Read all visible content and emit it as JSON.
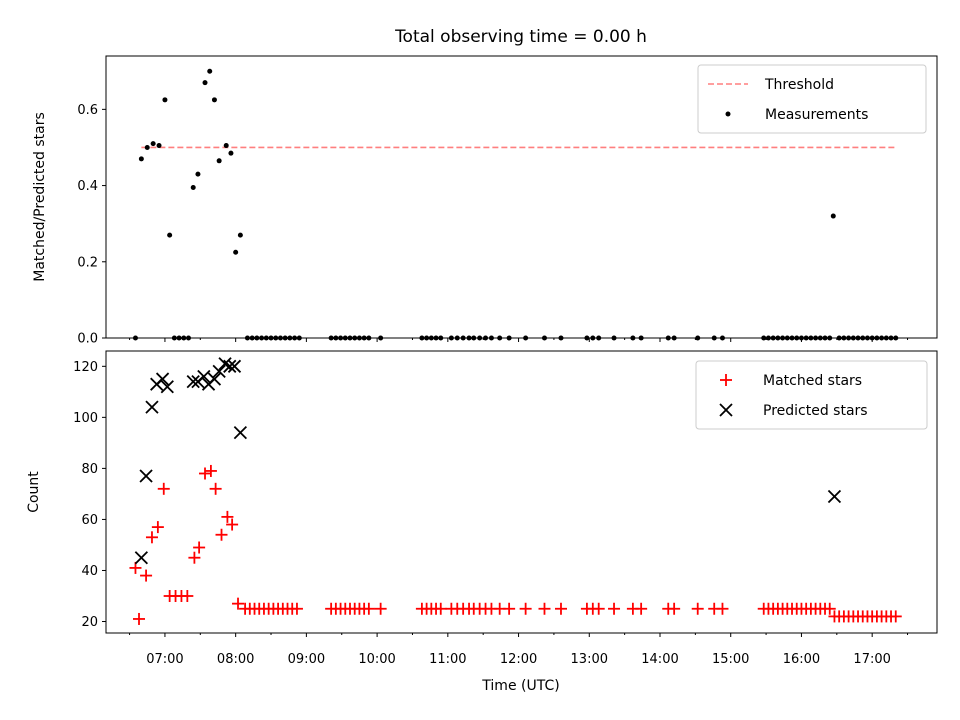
{
  "chart_data": [
    {
      "type": "scatter",
      "title": "Total observing time = 0.00 h",
      "xlabel": "",
      "ylabel": "Matched/Predicted stars",
      "xlim": [
        "06:10",
        "17:55"
      ],
      "ylim": [
        0,
        0.74
      ],
      "y_ticks": [
        0.0,
        0.2,
        0.4,
        0.6
      ],
      "y_tick_labels": [
        "0.0",
        "0.2",
        "0.4",
        "0.6"
      ],
      "threshold": {
        "name": "Threshold",
        "value": 0.5,
        "x_start": "06:40",
        "x_end": "17:20",
        "color": "#ff7f7f",
        "style": "dashed"
      },
      "series": [
        {
          "name": "Measurements",
          "color": "#000000",
          "marker": "dot",
          "points": [
            [
              "06:35",
              0.0
            ],
            [
              "06:40",
              0.47
            ],
            [
              "06:45",
              0.5
            ],
            [
              "06:50",
              0.51
            ],
            [
              "06:55",
              0.505
            ],
            [
              "07:00",
              0.625
            ],
            [
              "07:04",
              0.27
            ],
            [
              "07:08",
              0.0
            ],
            [
              "07:12",
              0.0
            ],
            [
              "07:16",
              0.0
            ],
            [
              "07:20",
              0.0
            ],
            [
              "07:24",
              0.395
            ],
            [
              "07:28",
              0.43
            ],
            [
              "07:34",
              0.67
            ],
            [
              "07:38",
              0.7
            ],
            [
              "07:42",
              0.625
            ],
            [
              "07:46",
              0.465
            ],
            [
              "07:52",
              0.505
            ],
            [
              "07:56",
              0.485
            ],
            [
              "08:00",
              0.225
            ],
            [
              "08:04",
              0.27
            ],
            [
              "08:10",
              0.0
            ],
            [
              "08:14",
              0.0
            ],
            [
              "08:18",
              0.0
            ],
            [
              "08:22",
              0.0
            ],
            [
              "08:26",
              0.0
            ],
            [
              "08:30",
              0.0
            ],
            [
              "08:34",
              0.0
            ],
            [
              "08:38",
              0.0
            ],
            [
              "08:42",
              0.0
            ],
            [
              "08:46",
              0.0
            ],
            [
              "08:50",
              0.0
            ],
            [
              "08:54",
              0.0
            ],
            [
              "09:21",
              0.0
            ],
            [
              "09:25",
              0.0
            ],
            [
              "09:29",
              0.0
            ],
            [
              "09:33",
              0.0
            ],
            [
              "09:37",
              0.0
            ],
            [
              "09:41",
              0.0
            ],
            [
              "09:45",
              0.0
            ],
            [
              "09:49",
              0.0
            ],
            [
              "09:53",
              0.0
            ],
            [
              "10:03",
              0.0
            ],
            [
              "10:38",
              0.0
            ],
            [
              "10:42",
              0.0
            ],
            [
              "10:46",
              0.0
            ],
            [
              "10:50",
              0.0
            ],
            [
              "10:54",
              0.0
            ],
            [
              "11:03",
              0.0
            ],
            [
              "11:08",
              0.0
            ],
            [
              "11:13",
              0.0
            ],
            [
              "11:18",
              0.0
            ],
            [
              "11:22",
              0.0
            ],
            [
              "11:27",
              0.0
            ],
            [
              "11:32",
              0.0
            ],
            [
              "11:37",
              0.0
            ],
            [
              "11:44",
              0.0
            ],
            [
              "11:52",
              0.0
            ],
            [
              "12:06",
              0.0
            ],
            [
              "12:22",
              0.0
            ],
            [
              "12:36",
              0.0
            ],
            [
              "12:58",
              0.0
            ],
            [
              "13:03",
              0.0
            ],
            [
              "13:08",
              0.0
            ],
            [
              "13:21",
              0.0
            ],
            [
              "13:37",
              0.0
            ],
            [
              "13:44",
              0.0
            ],
            [
              "14:07",
              0.0
            ],
            [
              "14:12",
              0.0
            ],
            [
              "14:32",
              0.0
            ],
            [
              "14:46",
              0.0
            ],
            [
              "14:53",
              0.0
            ],
            [
              "15:28",
              0.0
            ],
            [
              "15:32",
              0.0
            ],
            [
              "15:36",
              0.0
            ],
            [
              "15:40",
              0.0
            ],
            [
              "15:44",
              0.0
            ],
            [
              "15:48",
              0.0
            ],
            [
              "15:52",
              0.0
            ],
            [
              "15:56",
              0.0
            ],
            [
              "16:00",
              0.0
            ],
            [
              "16:04",
              0.0
            ],
            [
              "16:08",
              0.0
            ],
            [
              "16:12",
              0.0
            ],
            [
              "16:16",
              0.0
            ],
            [
              "16:20",
              0.0
            ],
            [
              "16:24",
              0.0
            ],
            [
              "16:27",
              0.32
            ],
            [
              "16:32",
              0.0
            ],
            [
              "16:36",
              0.0
            ],
            [
              "16:40",
              0.0
            ],
            [
              "16:44",
              0.0
            ],
            [
              "16:48",
              0.0
            ],
            [
              "16:52",
              0.0
            ],
            [
              "16:56",
              0.0
            ],
            [
              "17:00",
              0.0
            ],
            [
              "17:04",
              0.0
            ],
            [
              "17:08",
              0.0
            ],
            [
              "17:12",
              0.0
            ],
            [
              "17:16",
              0.0
            ],
            [
              "17:20",
              0.0
            ]
          ]
        }
      ],
      "legend": {
        "entries": [
          "Threshold",
          "Measurements"
        ],
        "position": "top-right"
      }
    },
    {
      "type": "scatter",
      "title": "",
      "xlabel": "Time (UTC)",
      "ylabel": "Count",
      "xlim": [
        "06:10",
        "17:55"
      ],
      "ylim": [
        15.5,
        126
      ],
      "x_ticks": [
        "07:00",
        "08:00",
        "09:00",
        "10:00",
        "11:00",
        "12:00",
        "13:00",
        "14:00",
        "15:00",
        "16:00",
        "17:00"
      ],
      "x_minor_ticks": [
        "06:30",
        "07:30",
        "08:30",
        "09:30",
        "10:30",
        "11:30",
        "12:30",
        "13:30",
        "14:30",
        "15:30",
        "16:30",
        "17:30"
      ],
      "y_ticks": [
        20,
        40,
        60,
        80,
        100,
        120
      ],
      "series": [
        {
          "name": "Matched stars",
          "color": "#ff0000",
          "marker": "plus",
          "points": [
            [
              "06:35",
              41
            ],
            [
              "06:38",
              21
            ],
            [
              "06:44",
              38
            ],
            [
              "06:49",
              53
            ],
            [
              "06:54",
              57
            ],
            [
              "06:59",
              72
            ],
            [
              "07:04",
              30
            ],
            [
              "07:09",
              30
            ],
            [
              "07:14",
              30
            ],
            [
              "07:19",
              30
            ],
            [
              "07:25",
              45
            ],
            [
              "07:29",
              49
            ],
            [
              "07:34",
              78
            ],
            [
              "07:39",
              79
            ],
            [
              "07:43",
              72
            ],
            [
              "07:48",
              54
            ],
            [
              "07:53",
              61
            ],
            [
              "07:57",
              58
            ],
            [
              "08:02",
              27
            ],
            [
              "08:08",
              25
            ],
            [
              "08:12",
              25
            ],
            [
              "08:16",
              25
            ],
            [
              "08:20",
              25
            ],
            [
              "08:24",
              25
            ],
            [
              "08:28",
              25
            ],
            [
              "08:32",
              25
            ],
            [
              "08:36",
              25
            ],
            [
              "08:40",
              25
            ],
            [
              "08:44",
              25
            ],
            [
              "08:48",
              25
            ],
            [
              "08:52",
              25
            ],
            [
              "09:21",
              25
            ],
            [
              "09:25",
              25
            ],
            [
              "09:29",
              25
            ],
            [
              "09:33",
              25
            ],
            [
              "09:37",
              25
            ],
            [
              "09:41",
              25
            ],
            [
              "09:45",
              25
            ],
            [
              "09:49",
              25
            ],
            [
              "09:53",
              25
            ],
            [
              "10:03",
              25
            ],
            [
              "10:38",
              25
            ],
            [
              "10:42",
              25
            ],
            [
              "10:46",
              25
            ],
            [
              "10:50",
              25
            ],
            [
              "10:54",
              25
            ],
            [
              "11:03",
              25
            ],
            [
              "11:08",
              25
            ],
            [
              "11:13",
              25
            ],
            [
              "11:18",
              25
            ],
            [
              "11:22",
              25
            ],
            [
              "11:27",
              25
            ],
            [
              "11:32",
              25
            ],
            [
              "11:37",
              25
            ],
            [
              "11:44",
              25
            ],
            [
              "11:52",
              25
            ],
            [
              "12:06",
              25
            ],
            [
              "12:22",
              25
            ],
            [
              "12:36",
              25
            ],
            [
              "12:58",
              25
            ],
            [
              "13:03",
              25
            ],
            [
              "13:08",
              25
            ],
            [
              "13:21",
              25
            ],
            [
              "13:37",
              25
            ],
            [
              "13:44",
              25
            ],
            [
              "14:07",
              25
            ],
            [
              "14:12",
              25
            ],
            [
              "14:32",
              25
            ],
            [
              "14:46",
              25
            ],
            [
              "14:53",
              25
            ],
            [
              "15:28",
              25
            ],
            [
              "15:32",
              25
            ],
            [
              "15:36",
              25
            ],
            [
              "15:40",
              25
            ],
            [
              "15:44",
              25
            ],
            [
              "15:48",
              25
            ],
            [
              "15:52",
              25
            ],
            [
              "15:56",
              25
            ],
            [
              "16:00",
              25
            ],
            [
              "16:04",
              25
            ],
            [
              "16:08",
              25
            ],
            [
              "16:12",
              25
            ],
            [
              "16:16",
              25
            ],
            [
              "16:20",
              25
            ],
            [
              "16:24",
              25
            ],
            [
              "16:28",
              22
            ],
            [
              "16:32",
              22
            ],
            [
              "16:36",
              22
            ],
            [
              "16:40",
              22
            ],
            [
              "16:44",
              22
            ],
            [
              "16:48",
              22
            ],
            [
              "16:52",
              22
            ],
            [
              "16:56",
              22
            ],
            [
              "17:00",
              22
            ],
            [
              "17:04",
              22
            ],
            [
              "17:08",
              22
            ],
            [
              "17:12",
              22
            ],
            [
              "17:16",
              22
            ],
            [
              "17:20",
              22
            ]
          ]
        },
        {
          "name": "Predicted stars",
          "color": "#000000",
          "marker": "x",
          "points": [
            [
              "06:40",
              45
            ],
            [
              "06:44",
              77
            ],
            [
              "06:49",
              104
            ],
            [
              "06:53",
              113
            ],
            [
              "06:58",
              115
            ],
            [
              "07:02",
              112
            ],
            [
              "07:24",
              114
            ],
            [
              "07:28",
              114
            ],
            [
              "07:33",
              116
            ],
            [
              "07:37",
              113
            ],
            [
              "07:42",
              115
            ],
            [
              "07:46",
              118
            ],
            [
              "07:51",
              121
            ],
            [
              "07:55",
              120
            ],
            [
              "07:59",
              120
            ],
            [
              "08:04",
              94
            ],
            [
              "16:28",
              69
            ]
          ]
        }
      ],
      "legend": {
        "entries": [
          "Matched stars",
          "Predicted stars"
        ],
        "position": "top-right"
      }
    }
  ]
}
